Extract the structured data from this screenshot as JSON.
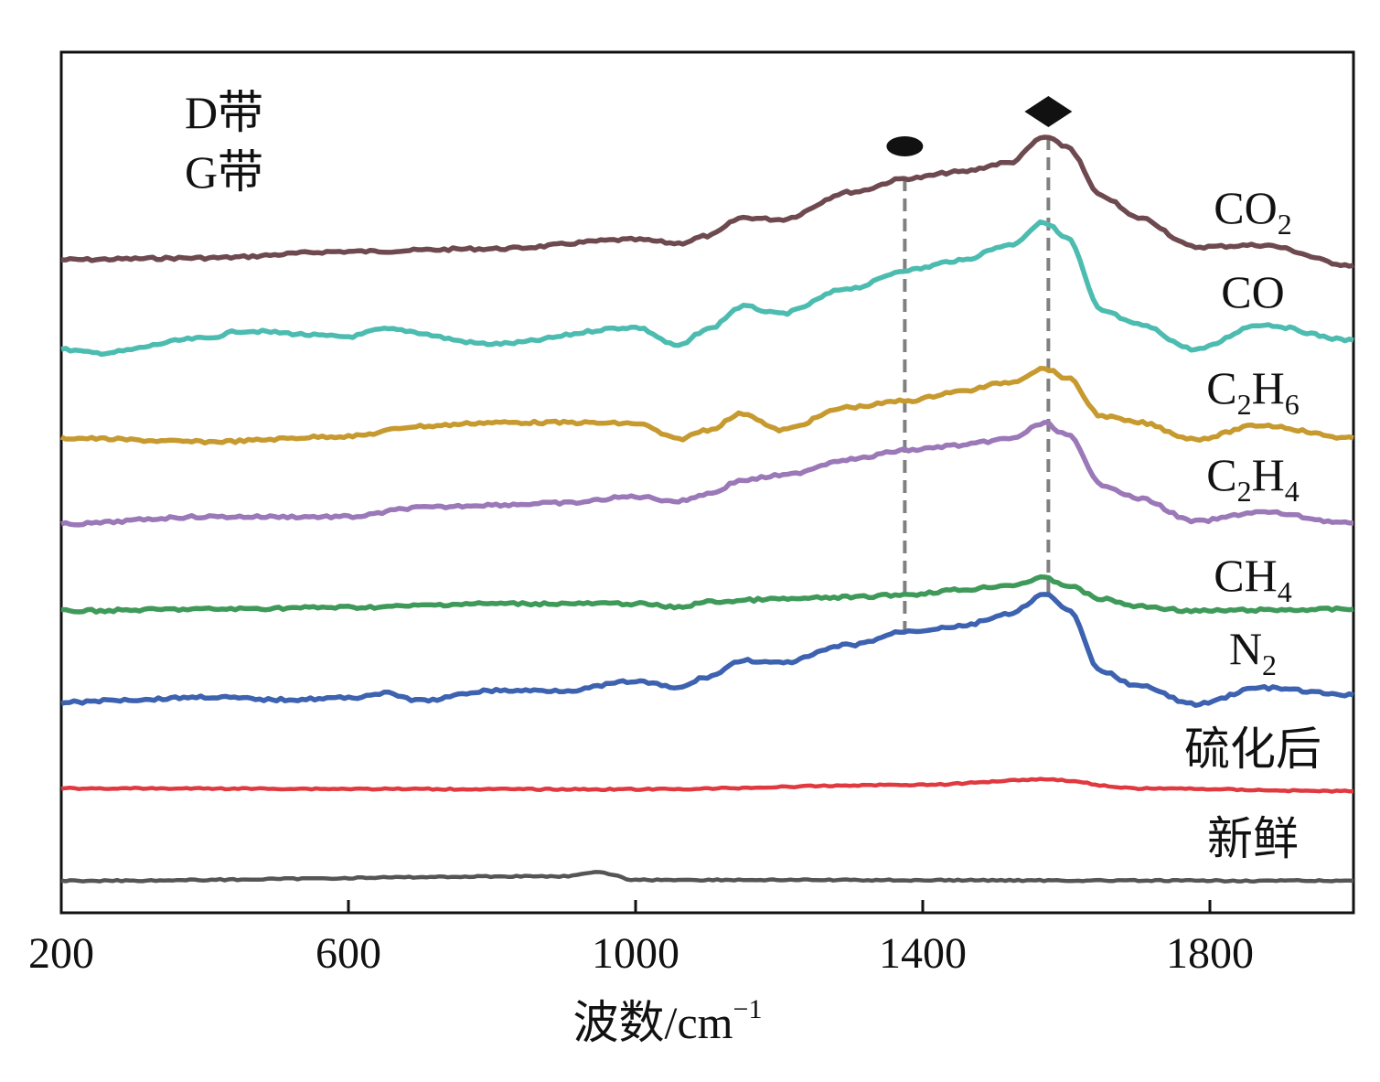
{
  "chart_data": {
    "type": "line",
    "title": "",
    "xlabel": "波数/cm",
    "xlabel_superscript": "−1",
    "ylabel": "",
    "xlim": [
      200,
      2000
    ],
    "ylim": [
      0,
      94.1
    ],
    "xticks": [
      200,
      600,
      1000,
      1400,
      1800
    ],
    "xtick_labels": [
      "200",
      "600",
      "1000",
      "1400",
      "1800"
    ],
    "grid": false,
    "y_ticks_shown": false,
    "band_legend": [
      {
        "label": "D带",
        "marker": "ellipse",
        "position": 1375,
        "marker_y": 83.8,
        "line_from": 30.8,
        "line_to": 80.3
      },
      {
        "label": "G带",
        "marker": "diamond",
        "position": 1575,
        "marker_y": 87.6,
        "line_from": 34.8,
        "line_to": 84.8
      }
    ],
    "dashed_line_color": "#808080",
    "series": [
      {
        "name": "CO",
        "sub": "2",
        "after": "",
        "color": "#6e4a50",
        "x": [
          200,
          400,
          600,
          800,
          1000,
          1060,
          1100,
          1150,
          1200,
          1300,
          1380,
          1450,
          1520,
          1570,
          1600,
          1650,
          1700,
          1780,
          1870,
          2000
        ],
        "y": [
          71.4,
          71.6,
          72.3,
          72.6,
          73.6,
          73.2,
          74.0,
          76.0,
          75.8,
          78.8,
          80.3,
          81.0,
          82.0,
          84.8,
          83.8,
          78.3,
          76.0,
          72.8,
          73.0,
          70.8
        ]
      },
      {
        "name": "CO",
        "sub": "",
        "after": "",
        "color": "#4dbcb0",
        "x": [
          200,
          250,
          400,
          450,
          600,
          650,
          800,
          1000,
          1060,
          1100,
          1150,
          1200,
          1300,
          1380,
          1450,
          1520,
          1570,
          1600,
          1650,
          1700,
          1780,
          1870,
          2000
        ],
        "y": [
          61.6,
          61.2,
          62.8,
          63.6,
          63.0,
          63.8,
          62.2,
          64.0,
          62.0,
          63.8,
          66.3,
          65.5,
          68.3,
          70.3,
          71.3,
          73.0,
          75.5,
          73.8,
          65.8,
          64.3,
          61.6,
          64.3,
          62.6
        ]
      },
      {
        "name": "C",
        "sub": "2",
        "after": "H",
        "sub2": "6",
        "color": "#c79a30",
        "x": [
          200,
          400,
          600,
          700,
          800,
          900,
          1000,
          1060,
          1100,
          1150,
          1200,
          1300,
          1380,
          1450,
          1520,
          1570,
          1600,
          1650,
          1700,
          1780,
          1870,
          2000
        ],
        "y": [
          51.9,
          51.5,
          52.1,
          53.2,
          53.6,
          53.6,
          53.5,
          51.8,
          52.8,
          54.6,
          52.8,
          55.3,
          56.0,
          57.0,
          58.0,
          59.5,
          58.5,
          54.3,
          53.6,
          51.8,
          53.3,
          51.9
        ]
      },
      {
        "name": "C",
        "sub": "2",
        "after": "H",
        "sub2": "4",
        "color": "#9b78b8",
        "x": [
          200,
          400,
          600,
          700,
          800,
          900,
          1000,
          1060,
          1100,
          1150,
          1200,
          1300,
          1380,
          1450,
          1520,
          1570,
          1600,
          1650,
          1700,
          1780,
          1870,
          2000
        ],
        "y": [
          42.5,
          43.3,
          43.3,
          44.3,
          44.6,
          44.8,
          45.5,
          45.0,
          45.8,
          47.3,
          47.8,
          49.6,
          50.6,
          51.1,
          51.8,
          53.5,
          52.3,
          46.8,
          45.3,
          42.8,
          43.8,
          42.6
        ]
      },
      {
        "name": "CH",
        "sub": "4",
        "after": "",
        "color": "#3f9a5a",
        "x": [
          200,
          400,
          600,
          800,
          1000,
          1060,
          1100,
          1200,
          1300,
          1380,
          1450,
          1520,
          1570,
          1600,
          1650,
          1700,
          1780,
          1870,
          2000
        ],
        "y": [
          33.0,
          33.2,
          33.4,
          33.8,
          33.8,
          33.4,
          34.0,
          34.3,
          34.5,
          34.8,
          35.3,
          35.8,
          36.6,
          35.8,
          34.3,
          33.5,
          33.0,
          33.1,
          33.2
        ]
      },
      {
        "name": "N",
        "sub": "2",
        "after": "",
        "color": "#3d62b0",
        "x": [
          200,
          300,
          400,
          500,
          600,
          650,
          700,
          800,
          900,
          1000,
          1060,
          1100,
          1150,
          1200,
          1300,
          1380,
          1450,
          1520,
          1570,
          1600,
          1650,
          1700,
          1780,
          1870,
          2000
        ],
        "y": [
          23.0,
          23.3,
          23.6,
          23.3,
          23.5,
          24.0,
          23.2,
          24.3,
          24.3,
          25.3,
          24.6,
          25.8,
          27.6,
          27.3,
          29.3,
          30.8,
          31.3,
          32.6,
          34.8,
          33.3,
          26.3,
          24.8,
          22.8,
          24.6,
          23.8
        ]
      },
      {
        "name": "硫化后",
        "sub": "",
        "after": "",
        "color": "#e0393f",
        "x": [
          200,
          1000,
          1400,
          1570,
          1700,
          2000
        ],
        "y": [
          13.6,
          13.5,
          14.0,
          14.6,
          13.6,
          13.3
        ]
      },
      {
        "name": "新鲜",
        "sub": "",
        "after": "",
        "color": "#555555",
        "x": [
          200,
          900,
          950,
          1000,
          2000
        ],
        "y": [
          3.5,
          4.0,
          4.4,
          3.6,
          3.5
        ]
      }
    ]
  }
}
